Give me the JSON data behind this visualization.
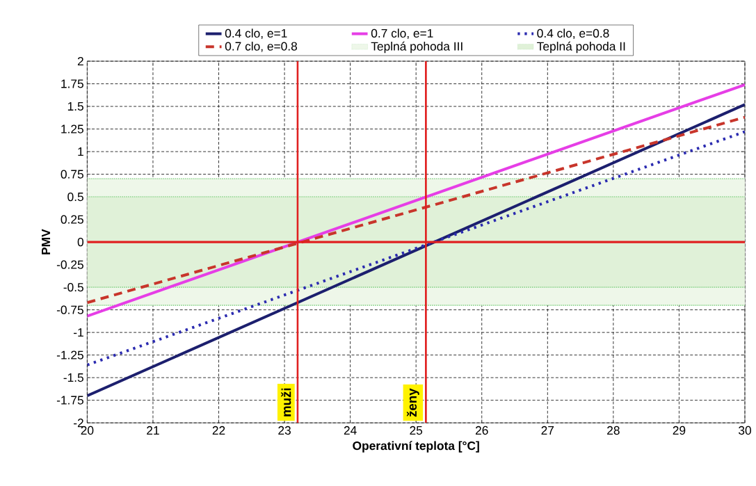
{
  "chart_data": {
    "type": "line",
    "xlabel": "Operativní teplota [°C]",
    "ylabel": "PMV",
    "x": [
      20,
      30
    ],
    "xlim": [
      20,
      30
    ],
    "ylim": [
      -2,
      2
    ],
    "xticks": [
      20,
      21,
      22,
      23,
      24,
      25,
      26,
      27,
      28,
      29,
      30
    ],
    "yticks": [
      -2,
      -1.75,
      -1.5,
      -1.25,
      -1,
      -0.75,
      -0.5,
      -0.25,
      0,
      0.25,
      0.5,
      0.75,
      1,
      1.25,
      1.5,
      1.75,
      2
    ],
    "grid": true,
    "legend": "top",
    "marker": "none",
    "series": [
      {
        "name": "0.4 clo, e=1",
        "color": "#1c1f6e",
        "values": [
          -1.7,
          1.52
        ],
        "line_style": "solid"
      },
      {
        "name": "0.7 clo, e=1",
        "color": "#e63ee6",
        "values": [
          -0.82,
          1.74
        ],
        "line_style": "solid"
      },
      {
        "name": "0.4 clo, e=0.8",
        "color": "#2b2bb0",
        "values": [
          -1.36,
          1.22
        ],
        "line_style": "dotted"
      },
      {
        "name": "0.7 clo, e=0.8",
        "color": "#c8352b",
        "values": [
          -0.67,
          1.38
        ],
        "line_style": "dashed"
      }
    ],
    "bands": [
      {
        "axis": "y",
        "from": -0.7,
        "to": 0.7,
        "label": "Teplná pohoda III",
        "color": "#eef7e9"
      },
      {
        "axis": "y",
        "from": -0.5,
        "to": 0.5,
        "label": "Teplná pohoda II",
        "color": "#e0f1d8"
      }
    ],
    "ref_lines": [
      {
        "axis": "y",
        "value": 0,
        "color": "#e02020"
      },
      {
        "axis": "x",
        "value": 23.2,
        "label": "muži",
        "color": "#e02020"
      },
      {
        "axis": "x",
        "value": 25.15,
        "label": "ženy",
        "color": "#e02020"
      }
    ]
  }
}
